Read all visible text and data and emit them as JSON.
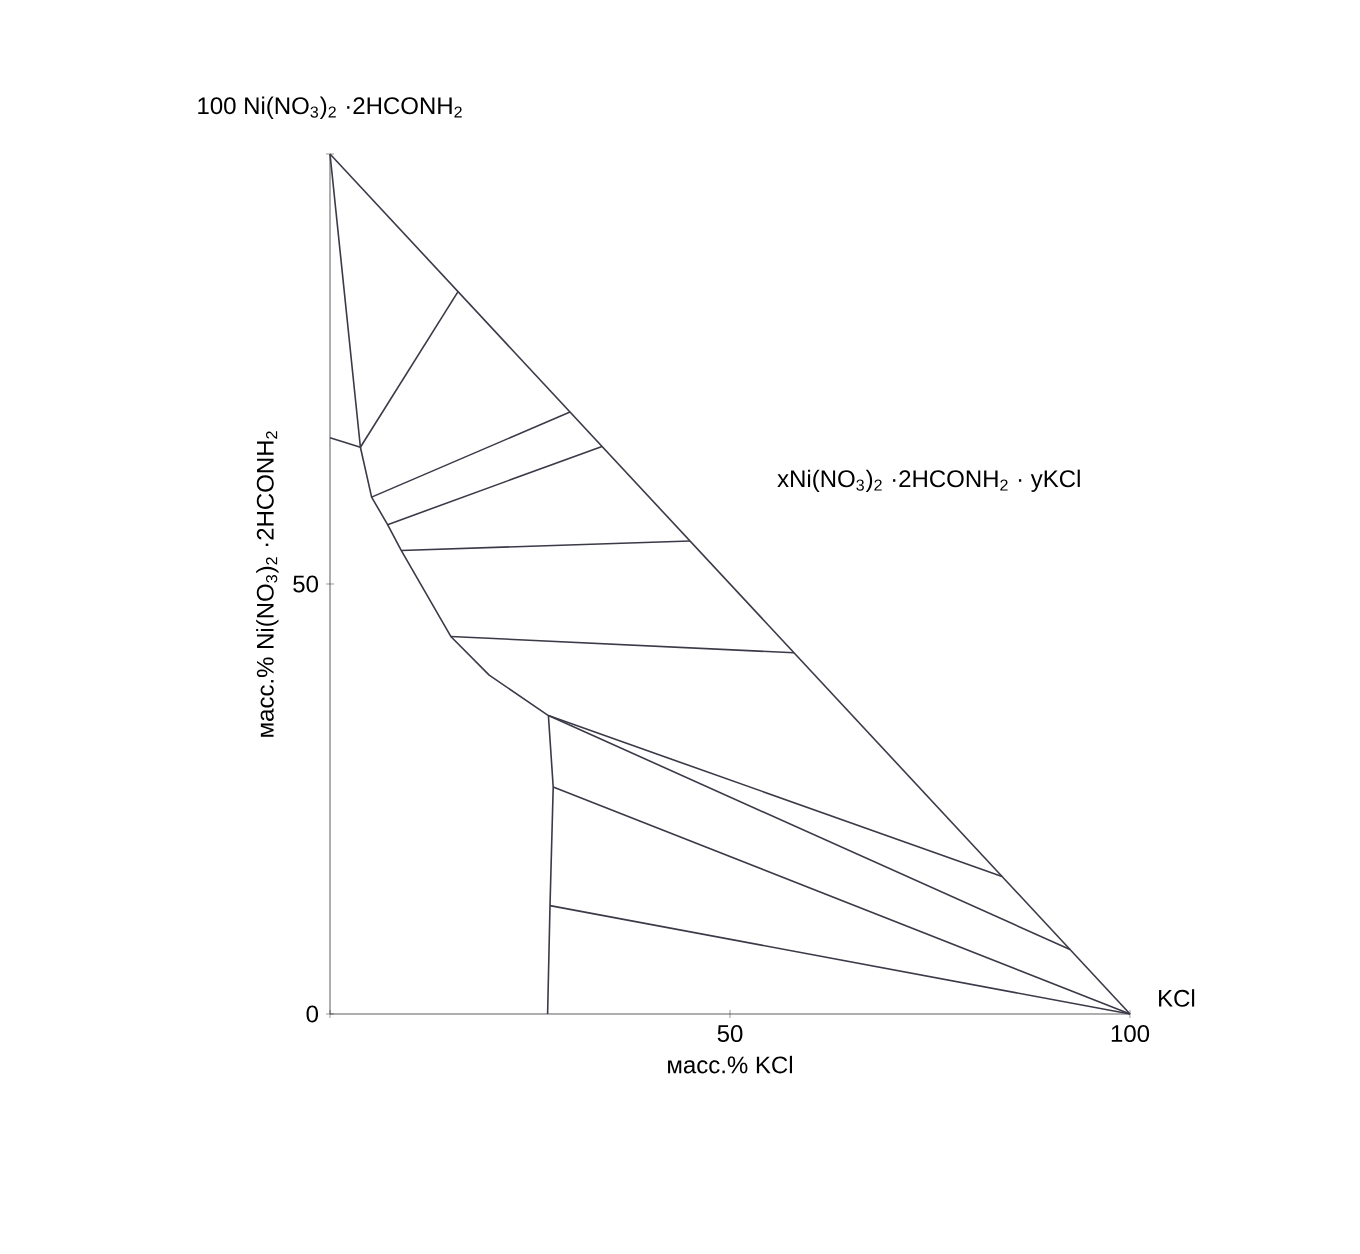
{
  "chart_data": {
    "type": "line",
    "xlabel": "масс.% KCl",
    "ylabel": "масс.% Ni(NO$_{3}$)$_{2}$ ·2HCONH$_{2}$",
    "xlim": [
      0,
      100
    ],
    "ylim": [
      0,
      100
    ],
    "xticks": [
      {
        "value": 0,
        "label": null
      },
      50,
      100
    ],
    "yticks": [
      0,
      50,
      {
        "value": 100,
        "label": null
      }
    ],
    "annotations": [
      {
        "text": "100 Ni(NO$_{3}$)$_{2}$ ·2HCONH$_{2}$",
        "x": 0,
        "y": 100
      },
      "xNi(NO$_{3}$)$_{2}$ ·2HCONH$_{2}$ · yKCl",
      {
        "text": "KCl",
        "x": 100,
        "y": 0
      }
    ],
    "series": [
      {
        "color": "#3a3a48",
        "x": [
          0,
          100
        ],
        "values": [
          100,
          0
        ]
      },
      {
        "color": "#3a3a48",
        "x": [
          0,
          3.8
        ],
        "values": [
          67,
          65.9
        ]
      },
      {
        "color": "#3a3a48",
        "x": [
          0,
          3.8,
          5.2,
          7.2,
          8.9,
          15.1,
          19.9,
          27.3,
          27.9,
          27.5,
          27.2
        ],
        "values": [
          100,
          65.9,
          60.1,
          56.9,
          53.9,
          43.9,
          39.4,
          34.7,
          26.4,
          12.6,
          0
        ]
      },
      {
        "color": "#3a3a48",
        "x": [
          3.8,
          16
        ],
        "values": [
          65.9,
          84
        ]
      },
      {
        "color": "#3a3a48",
        "x": [
          5.2,
          30
        ],
        "values": [
          60.1,
          70
        ]
      },
      {
        "color": "#3a3a48",
        "x": [
          7.2,
          34
        ],
        "values": [
          56.9,
          66
        ]
      },
      {
        "color": "#3a3a48",
        "x": [
          8.9,
          45
        ],
        "values": [
          53.9,
          55
        ]
      },
      {
        "color": "#3a3a48",
        "x": [
          15.1,
          58
        ],
        "values": [
          43.9,
          42
        ]
      },
      {
        "color": "#3a3a48",
        "x": [
          27.3,
          84
        ],
        "values": [
          34.7,
          16
        ]
      },
      {
        "color": "#3a3a48",
        "x": [
          27.3,
          92.5
        ],
        "values": [
          34.7,
          7.5
        ]
      },
      {
        "color": "#3a3a48",
        "x": [
          27.9,
          100
        ],
        "values": [
          26.4,
          0
        ]
      },
      {
        "color": "#3a3a48",
        "x": [
          27.5,
          100
        ],
        "values": [
          12.6,
          0
        ]
      }
    ]
  }
}
